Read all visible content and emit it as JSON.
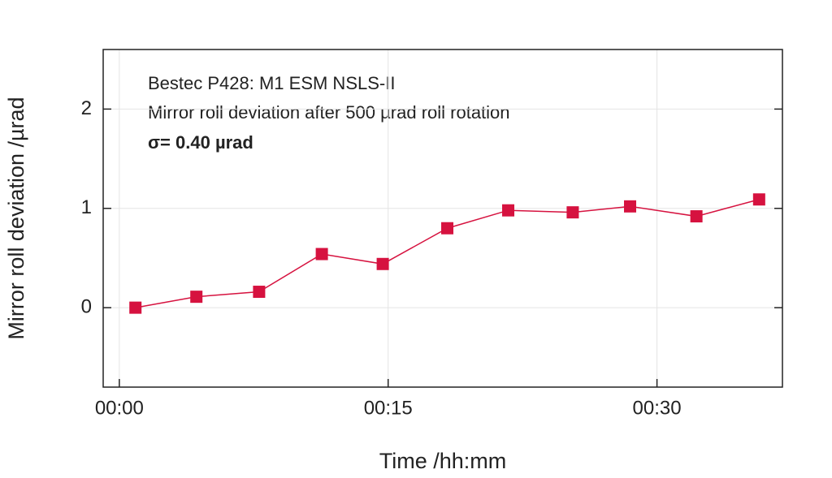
{
  "chart_data": {
    "type": "line",
    "annotations": [
      "Bestec P428: M1 ESM NSLS-II",
      "Mirror roll deviation after 500 µrad roll rotation",
      "σ= 0.40 µrad"
    ],
    "x_label": "Time /hh:mm",
    "y_label": "Mirror roll deviation /µrad",
    "x": [
      0.9,
      4.3,
      7.8,
      11.3,
      14.7,
      18.3,
      21.7,
      25.3,
      28.5,
      32.2,
      35.7
    ],
    "series": [
      {
        "name": "Mirror roll deviation",
        "color": "#d6123f",
        "values": [
          0,
          0.11,
          0.16,
          0.54,
          0.44,
          0.8,
          0.98,
          0.96,
          1.02,
          0.92,
          1.09
        ]
      }
    ],
    "xlim": [
      -0.9,
      37.0
    ],
    "xticks": [
      {
        "value": 0,
        "label": "00:00"
      },
      {
        "value": 15,
        "label": "00:15"
      },
      {
        "value": 30,
        "label": "00:30"
      }
    ],
    "ylim": [
      -0.8,
      2.6
    ],
    "yticks": [
      0,
      1,
      2
    ],
    "grid": true
  }
}
